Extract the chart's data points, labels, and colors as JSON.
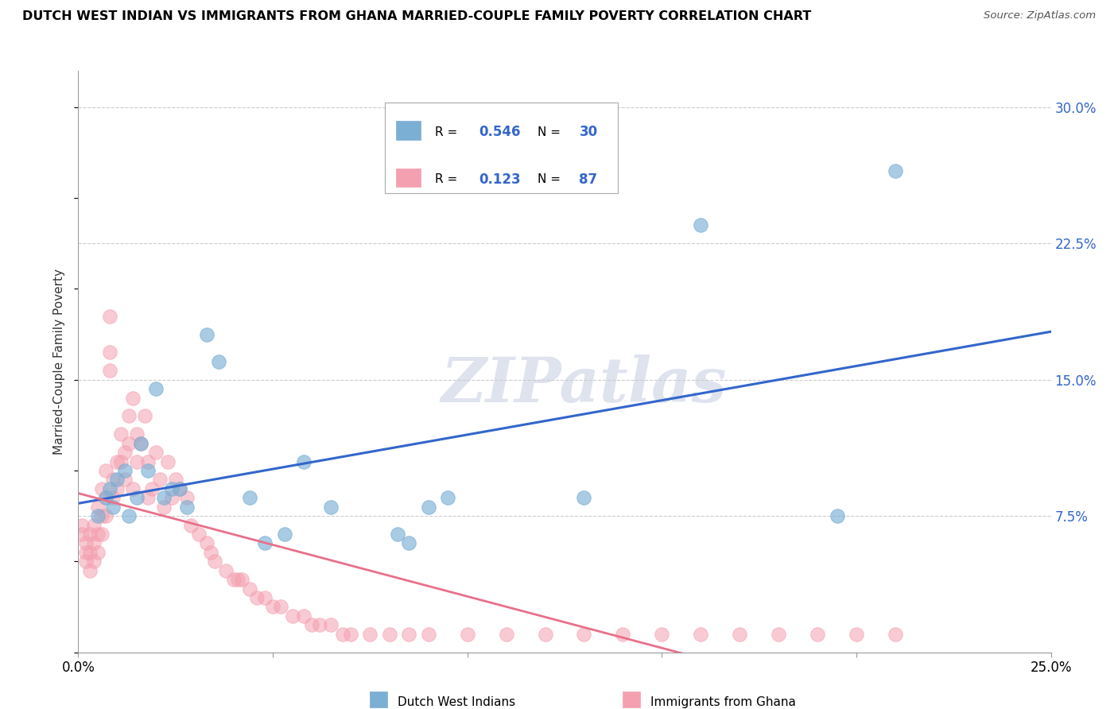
{
  "title": "DUTCH WEST INDIAN VS IMMIGRANTS FROM GHANA MARRIED-COUPLE FAMILY POVERTY CORRELATION CHART",
  "source": "Source: ZipAtlas.com",
  "ylabel": "Married-Couple Family Poverty",
  "x_min": 0.0,
  "x_max": 0.25,
  "y_min": 0.0,
  "y_max": 0.32,
  "y_ticks": [
    0.075,
    0.15,
    0.225,
    0.3
  ],
  "y_tick_labels": [
    "7.5%",
    "15.0%",
    "22.5%",
    "30.0%"
  ],
  "x_ticks": [
    0.0,
    0.05,
    0.1,
    0.15,
    0.2,
    0.25
  ],
  "x_tick_labels": [
    "0.0%",
    "",
    "",
    "",
    "",
    "25.0%"
  ],
  "grid_color": "#cccccc",
  "watermark": "ZIPatlas",
  "legend_val1": "0.546",
  "legend_nval1": "30",
  "legend_val2": "0.123",
  "legend_nval2": "87",
  "color_blue": "#7bafd4",
  "color_pink": "#f4a0b0",
  "color_blue_line": "#3366cc",
  "color_pink_line": "#e8708a",
  "legend_label1": "Dutch West Indians",
  "legend_label2": "Immigrants from Ghana",
  "blue_x": [
    0.005,
    0.007,
    0.008,
    0.009,
    0.01,
    0.012,
    0.013,
    0.015,
    0.016,
    0.018,
    0.02,
    0.022,
    0.024,
    0.026,
    0.028,
    0.033,
    0.036,
    0.044,
    0.048,
    0.053,
    0.058,
    0.065,
    0.082,
    0.085,
    0.09,
    0.095,
    0.13,
    0.16,
    0.195,
    0.21
  ],
  "blue_y": [
    0.075,
    0.085,
    0.09,
    0.08,
    0.095,
    0.1,
    0.075,
    0.085,
    0.115,
    0.1,
    0.145,
    0.085,
    0.09,
    0.09,
    0.08,
    0.175,
    0.16,
    0.085,
    0.06,
    0.065,
    0.105,
    0.08,
    0.065,
    0.06,
    0.08,
    0.085,
    0.085,
    0.235,
    0.075,
    0.265
  ],
  "pink_x": [
    0.001,
    0.001,
    0.002,
    0.002,
    0.002,
    0.003,
    0.003,
    0.003,
    0.004,
    0.004,
    0.004,
    0.005,
    0.005,
    0.005,
    0.006,
    0.006,
    0.006,
    0.007,
    0.007,
    0.007,
    0.008,
    0.008,
    0.008,
    0.009,
    0.009,
    0.01,
    0.01,
    0.011,
    0.011,
    0.012,
    0.012,
    0.013,
    0.013,
    0.014,
    0.014,
    0.015,
    0.015,
    0.016,
    0.017,
    0.018,
    0.018,
    0.019,
    0.02,
    0.021,
    0.022,
    0.023,
    0.024,
    0.025,
    0.026,
    0.028,
    0.029,
    0.031,
    0.033,
    0.034,
    0.035,
    0.038,
    0.04,
    0.041,
    0.042,
    0.044,
    0.046,
    0.048,
    0.05,
    0.052,
    0.055,
    0.058,
    0.06,
    0.062,
    0.065,
    0.068,
    0.07,
    0.075,
    0.08,
    0.085,
    0.09,
    0.1,
    0.11,
    0.12,
    0.13,
    0.14,
    0.15,
    0.16,
    0.17,
    0.18,
    0.19,
    0.2,
    0.21
  ],
  "pink_y": [
    0.07,
    0.065,
    0.06,
    0.055,
    0.05,
    0.065,
    0.055,
    0.045,
    0.07,
    0.06,
    0.05,
    0.08,
    0.065,
    0.055,
    0.09,
    0.075,
    0.065,
    0.1,
    0.085,
    0.075,
    0.185,
    0.165,
    0.155,
    0.095,
    0.085,
    0.105,
    0.09,
    0.12,
    0.105,
    0.11,
    0.095,
    0.13,
    0.115,
    0.14,
    0.09,
    0.12,
    0.105,
    0.115,
    0.13,
    0.105,
    0.085,
    0.09,
    0.11,
    0.095,
    0.08,
    0.105,
    0.085,
    0.095,
    0.09,
    0.085,
    0.07,
    0.065,
    0.06,
    0.055,
    0.05,
    0.045,
    0.04,
    0.04,
    0.04,
    0.035,
    0.03,
    0.03,
    0.025,
    0.025,
    0.02,
    0.02,
    0.015,
    0.015,
    0.015,
    0.01,
    0.01,
    0.01,
    0.01,
    0.01,
    0.01,
    0.01,
    0.01,
    0.01,
    0.01,
    0.01,
    0.01,
    0.01,
    0.01,
    0.01,
    0.01,
    0.01,
    0.01
  ]
}
